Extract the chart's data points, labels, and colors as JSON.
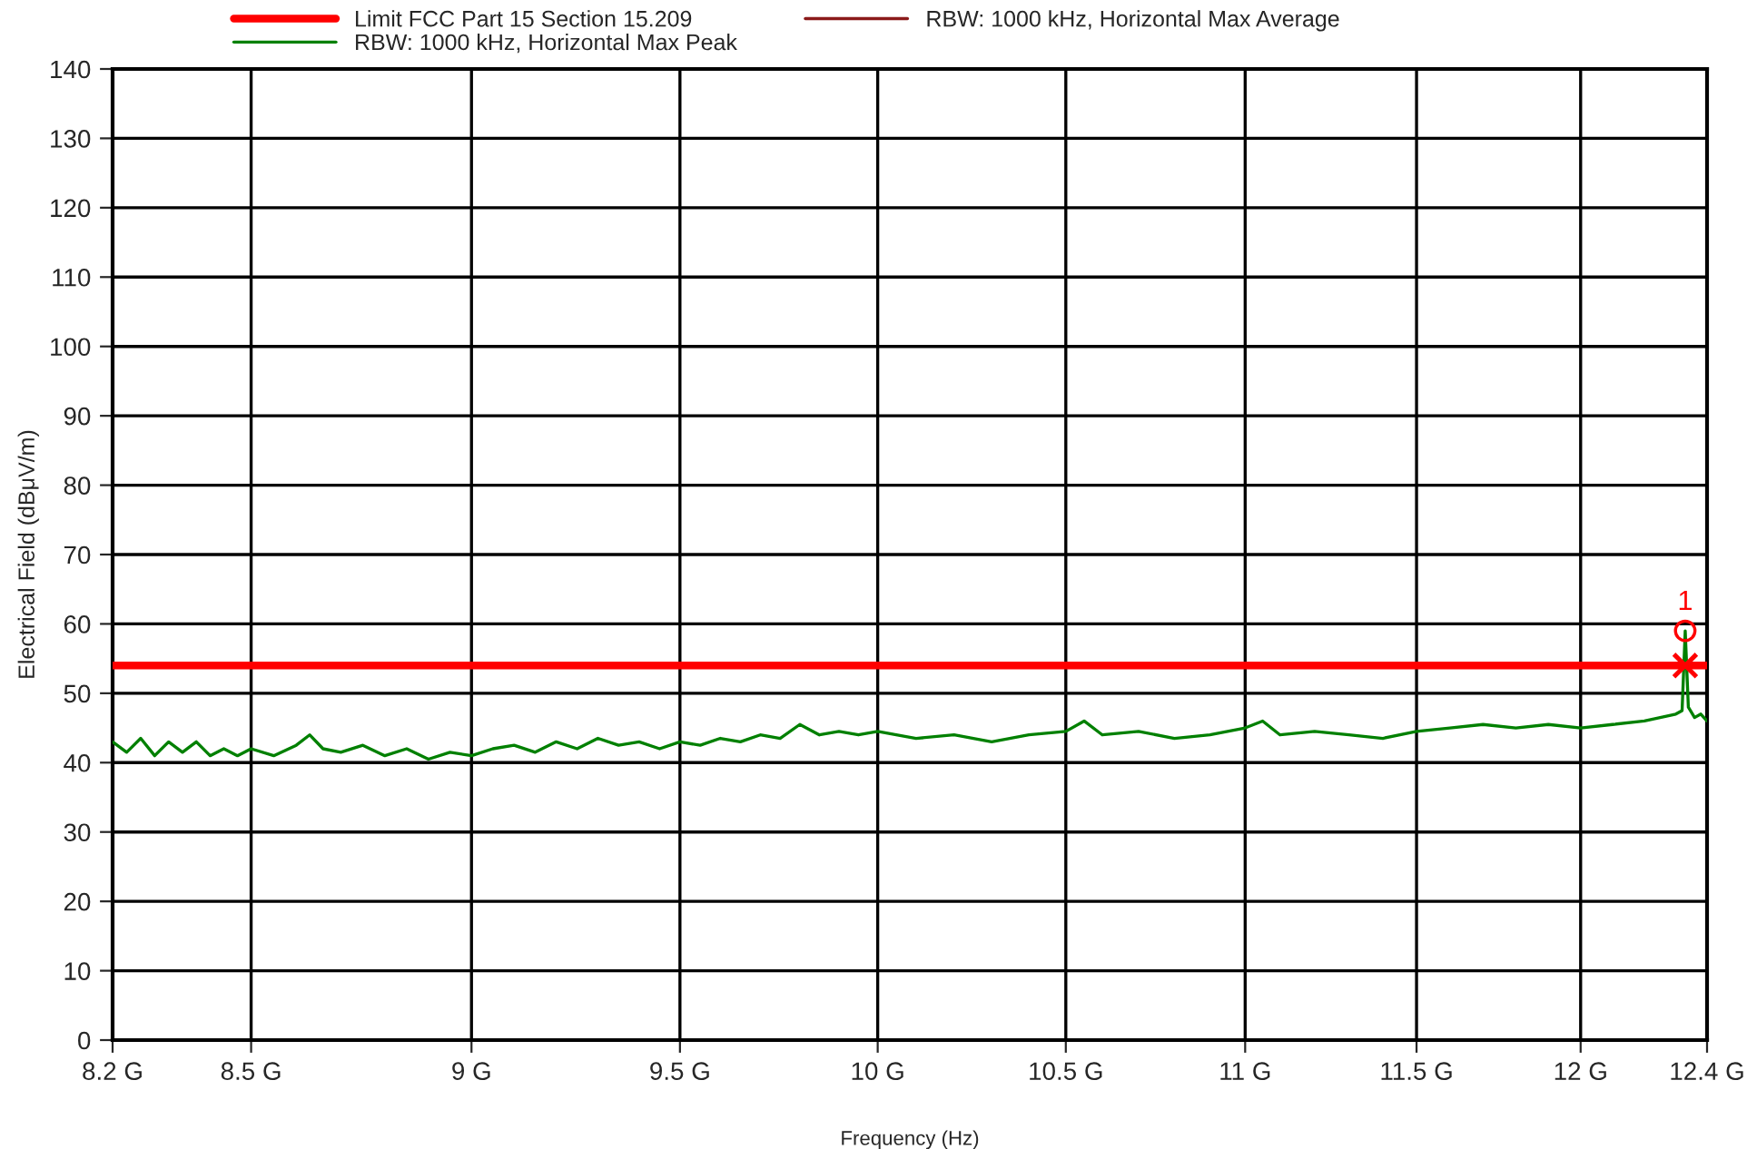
{
  "chart_data": {
    "type": "line",
    "xlabel": "Frequency (Hz)",
    "ylabel": "Electrical Field (dBμV/m)",
    "log": "x",
    "xlim": [
      8.2,
      12.4
    ],
    "xticks": [
      {
        "value": 8.2,
        "label": "8.2 G"
      },
      {
        "value": 8.5,
        "label": "8.5 G"
      },
      {
        "value": 9,
        "label": "9 G"
      },
      {
        "value": 9.5,
        "label": "9.5 G"
      },
      {
        "value": 10,
        "label": "10 G"
      },
      {
        "value": 10.5,
        "label": "10.5 G"
      },
      {
        "value": 11,
        "label": "11 G"
      },
      {
        "value": 11.5,
        "label": "11.5 G"
      },
      {
        "value": 12,
        "label": "12 G"
      },
      {
        "value": 12.4,
        "label": "12.4 G"
      }
    ],
    "ylim": [
      0,
      140
    ],
    "yticks": [
      0,
      10,
      20,
      30,
      40,
      50,
      60,
      70,
      80,
      90,
      100,
      110,
      120,
      130,
      140
    ],
    "grid": true,
    "legend": "top left",
    "series": [
      {
        "name": "Limit FCC Part 15 Section 15.209",
        "color": "#ff0000",
        "x": [
          8.2,
          12.4
        ],
        "values": [
          54,
          54
        ]
      },
      {
        "name": "RBW: 1000 kHz, Horizontal Max Average",
        "color": "#8b1a1a"
      },
      {
        "name": "RBW: 1000 kHz, Horizontal Max Peak",
        "color": "#008000",
        "x": [
          8.2,
          8.23,
          8.26,
          8.29,
          8.32,
          8.35,
          8.38,
          8.41,
          8.44,
          8.47,
          8.5,
          8.55,
          8.6,
          8.63,
          8.66,
          8.7,
          8.75,
          8.8,
          8.85,
          8.9,
          8.95,
          9.0,
          9.05,
          9.1,
          9.15,
          9.2,
          9.25,
          9.3,
          9.35,
          9.4,
          9.45,
          9.5,
          9.55,
          9.6,
          9.65,
          9.7,
          9.75,
          9.8,
          9.85,
          9.9,
          9.95,
          10.0,
          10.1,
          10.2,
          10.3,
          10.4,
          10.5,
          10.55,
          10.6,
          10.7,
          10.8,
          10.9,
          11.0,
          11.05,
          11.1,
          11.2,
          11.3,
          11.4,
          11.5,
          11.6,
          11.7,
          11.8,
          11.9,
          12.0,
          12.1,
          12.2,
          12.25,
          12.3,
          12.32,
          12.33,
          12.34,
          12.36,
          12.38,
          12.4
        ],
        "values": [
          43,
          41.5,
          43.5,
          41,
          43,
          41.5,
          43,
          41,
          42,
          41,
          42,
          41,
          42.5,
          44,
          42,
          41.5,
          42.5,
          41,
          42,
          40.5,
          41.5,
          41,
          42,
          42.5,
          41.5,
          43,
          42,
          43.5,
          42.5,
          43,
          42,
          43,
          42.5,
          43.5,
          43,
          44,
          43.5,
          45.5,
          44,
          44.5,
          44,
          44.5,
          43.5,
          44,
          43,
          44,
          44.5,
          46,
          44,
          44.5,
          43.5,
          44,
          45,
          46,
          44,
          44.5,
          44,
          43.5,
          44.5,
          45,
          45.5,
          45,
          45.5,
          45,
          45.5,
          46,
          46.5,
          47,
          47.5,
          59,
          48,
          46.5,
          47,
          46
        ]
      },
      {
        "type": "scatter",
        "marker": "circle",
        "color": "#ff0000",
        "x": [
          12.33
        ],
        "values": [
          59
        ]
      },
      {
        "type": "scatter",
        "marker": "cross",
        "color": "#ff0000",
        "x": [
          12.33
        ],
        "values": [
          54
        ]
      }
    ],
    "annotations": [
      {
        "text": "1",
        "x": 12.33,
        "y": 59
      }
    ]
  }
}
